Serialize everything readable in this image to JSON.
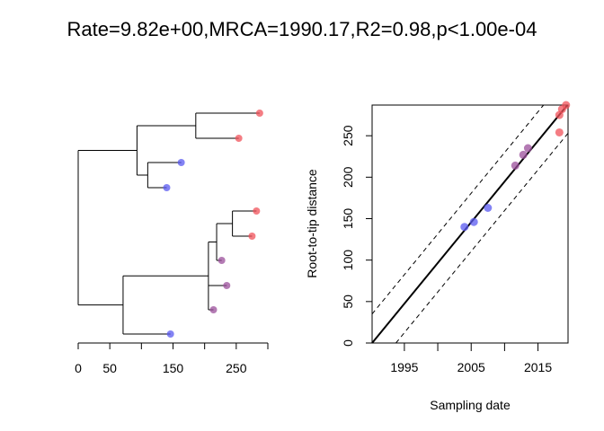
{
  "title": "Rate=9.82e+00,MRCA=1990.17,R2=0.98,p<1.00e-04",
  "chart_data": [
    {
      "type": "tree",
      "name": "phylogeny",
      "axis": {
        "range": [
          0,
          300
        ],
        "ticks": [
          0,
          50,
          100,
          150,
          200,
          250,
          300
        ],
        "tick_labels": [
          "0",
          "50",
          "",
          "150",
          "",
          "250",
          ""
        ]
      },
      "tips": [
        {
          "id": "t1",
          "depth": 287,
          "group": "red"
        },
        {
          "id": "t2",
          "depth": 254,
          "group": "red"
        },
        {
          "id": "t3",
          "depth": 163,
          "group": "blue"
        },
        {
          "id": "t4",
          "depth": 140,
          "group": "blue"
        },
        {
          "id": "t5",
          "depth": 282,
          "group": "red"
        },
        {
          "id": "t6",
          "depth": 275,
          "group": "red"
        },
        {
          "id": "t7",
          "depth": 227,
          "group": "purple"
        },
        {
          "id": "t8",
          "depth": 235,
          "group": "purple"
        },
        {
          "id": "t9",
          "depth": 214,
          "group": "purple"
        },
        {
          "id": "t10",
          "depth": 146,
          "group": "blue"
        }
      ],
      "nodes": [
        {
          "id": "root",
          "depth": 0,
          "children": [
            "A",
            "B"
          ]
        },
        {
          "id": "A",
          "depth": 93,
          "children": [
            "A1",
            "A2"
          ]
        },
        {
          "id": "A1",
          "depth": 186,
          "children": [
            "t1",
            "t2"
          ]
        },
        {
          "id": "A2",
          "depth": 110,
          "children": [
            "t3",
            "t4"
          ]
        },
        {
          "id": "B",
          "depth": 71,
          "children": [
            "B1",
            "t10"
          ]
        },
        {
          "id": "B1",
          "depth": 206,
          "children": [
            "B2",
            "t8",
            "t9"
          ]
        },
        {
          "id": "B2",
          "depth": 219,
          "children": [
            "B3",
            "t7"
          ]
        },
        {
          "id": "B3",
          "depth": 244,
          "children": [
            "t5",
            "t6"
          ]
        }
      ]
    },
    {
      "type": "scatter",
      "name": "root-to-tip",
      "xlabel": "Sampling date",
      "ylabel": "Root-to-tip distance",
      "xlim": [
        1990.17,
        2019.5
      ],
      "ylim": [
        0,
        287
      ],
      "x_ticks": [
        1995,
        2000,
        2005,
        2010,
        2015
      ],
      "x_tick_labels": [
        "1995",
        "",
        "2005",
        "",
        "2015"
      ],
      "y_ticks": [
        0,
        50,
        100,
        150,
        200,
        250
      ],
      "y_tick_labels": [
        "0",
        "50",
        "100",
        "150",
        "200",
        "250"
      ],
      "points": [
        {
          "x": 2004.0,
          "y": 140,
          "group": "blue"
        },
        {
          "x": 2005.4,
          "y": 146,
          "group": "blue"
        },
        {
          "x": 2007.5,
          "y": 163,
          "group": "blue"
        },
        {
          "x": 2011.6,
          "y": 214,
          "group": "purple"
        },
        {
          "x": 2012.8,
          "y": 227,
          "group": "purple"
        },
        {
          "x": 2013.5,
          "y": 235,
          "group": "purple"
        },
        {
          "x": 2018.2,
          "y": 254,
          "group": "red"
        },
        {
          "x": 2018.2,
          "y": 275,
          "group": "red"
        },
        {
          "x": 2018.6,
          "y": 282,
          "group": "red"
        },
        {
          "x": 2019.2,
          "y": 287,
          "group": "red"
        }
      ],
      "regression": {
        "rate": 9.82,
        "mrca": 1990.17,
        "r2": 0.98,
        "p": "<1.00e-04"
      },
      "confidence_band_offset": 35
    }
  ],
  "colors": {
    "red": "#f0525a",
    "blue": "#5a5af0",
    "purple": "#9b4f9b",
    "line": "#000000"
  }
}
